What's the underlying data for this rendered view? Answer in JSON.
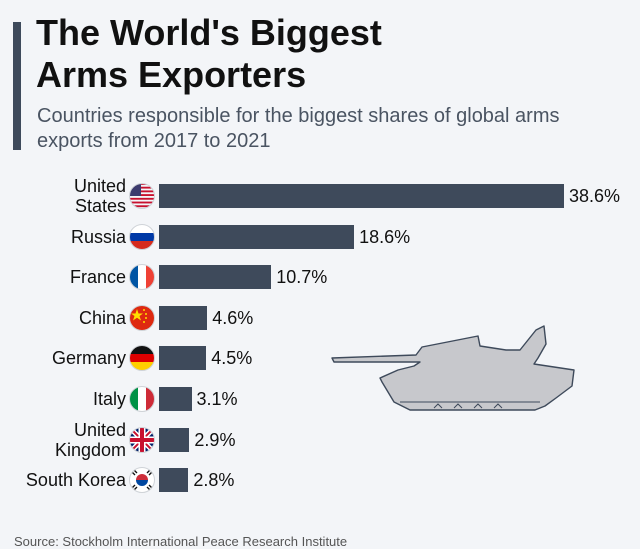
{
  "title": "The World's Biggest\nArms Exporters",
  "subtitle": "Countries responsible for the biggest shares of global arms exports from 2017 to 2021",
  "source": "Source: Stockholm International Peace Research Institute",
  "colors": {
    "bar": "#3e4a5b",
    "background": "#f3f5f8",
    "tank": "#c7c8cc"
  },
  "decoration": {
    "icon": "tank-silhouette-icon"
  },
  "chart_data": {
    "type": "bar",
    "orientation": "horizontal",
    "categories": [
      "United\nStates",
      "Russia",
      "France",
      "China",
      "Germany",
      "Italy",
      "United\nKingdom",
      "South Korea"
    ],
    "values": [
      38.6,
      18.6,
      10.7,
      4.6,
      4.5,
      3.1,
      2.9,
      2.8
    ],
    "value_labels": [
      "38.6%",
      "18.6%",
      "10.7%",
      "4.6%",
      "4.5%",
      "3.1%",
      "2.9%",
      "2.8%"
    ],
    "flags": [
      "flag-us-icon",
      "flag-russia-icon",
      "flag-france-icon",
      "flag-china-icon",
      "flag-germany-icon",
      "flag-italy-icon",
      "flag-uk-icon",
      "flag-south-korea-icon"
    ],
    "unit": "%",
    "xlim": [
      0,
      38.6
    ],
    "grid": false,
    "legend": "none"
  }
}
